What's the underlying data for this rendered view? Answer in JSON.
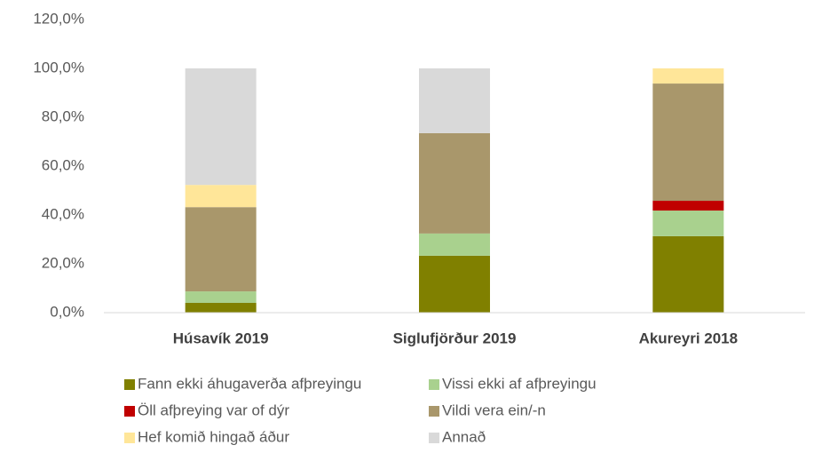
{
  "chart_data": {
    "type": "stacked_bar",
    "categories": [
      "Húsavík 2019",
      "Siglufjörður 2019",
      "Akureyri 2018"
    ],
    "series": [
      {
        "name": "Fann ekki áhugaverða afþreyingu",
        "color": "#808000",
        "values": [
          4.0,
          23.3,
          31.3
        ]
      },
      {
        "name": "Vissi ekki af afþreyingu",
        "color": "#a9d18e",
        "values": [
          4.7,
          9.1,
          10.5
        ]
      },
      {
        "name": "Öll afþreying var of dýr",
        "color": "#c00000",
        "values": [
          0,
          0,
          4.0
        ]
      },
      {
        "name": "Vildi vera ein/-n",
        "color": "#a9976b",
        "values": [
          34.5,
          41.1,
          48.0
        ]
      },
      {
        "name": "Hef komið hingað áður",
        "color": "#ffe699",
        "values": [
          9.1,
          0,
          6.2
        ]
      },
      {
        "name": "Annað",
        "color": "#d9d9d9",
        "values": [
          47.7,
          26.5,
          0
        ]
      }
    ],
    "ylim": [
      0,
      120
    ],
    "yticks": [
      {
        "value": 0,
        "label": "0,0%"
      },
      {
        "value": 20,
        "label": "20,0%"
      },
      {
        "value": 40,
        "label": "40,0%"
      },
      {
        "value": 60,
        "label": "60,0%"
      },
      {
        "value": 80,
        "label": "80,0%"
      },
      {
        "value": 100,
        "label": "100,0%"
      },
      {
        "value": 120,
        "label": "120,0%"
      }
    ],
    "legend": "bottom"
  }
}
